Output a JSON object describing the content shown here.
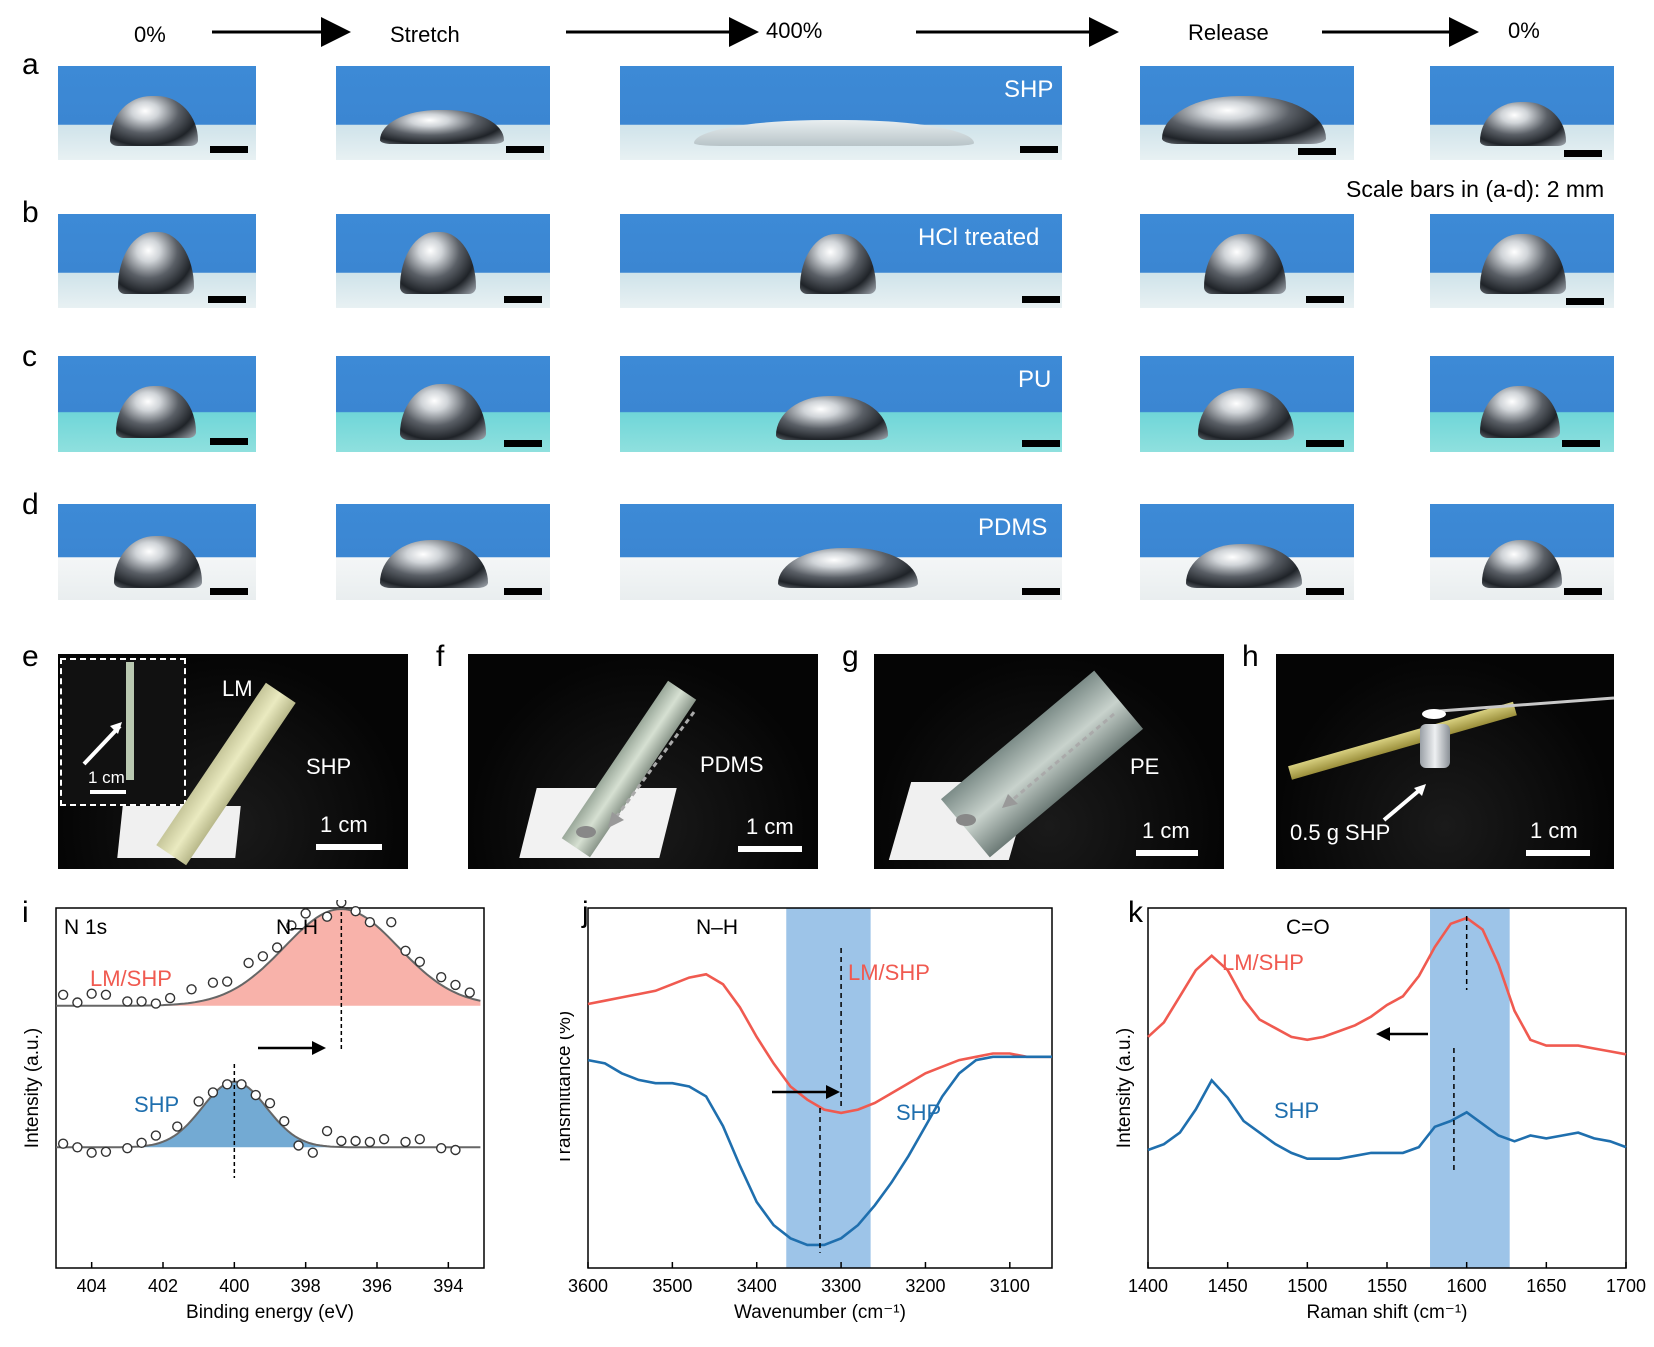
{
  "header": {
    "stage1": "0%",
    "stage2": "Stretch",
    "stage3": "400%",
    "stage4": "Release",
    "stage5": "0%"
  },
  "rows": {
    "a": {
      "label": "a",
      "material": "SHP"
    },
    "b": {
      "label": "b",
      "material": "HCl treated"
    },
    "c": {
      "label": "c",
      "material": "PU"
    },
    "d": {
      "label": "d",
      "material": "PDMS"
    }
  },
  "scale_note": "Scale bars in (a-d): 2 mm",
  "panels": {
    "e": {
      "label": "e",
      "lm": "LM",
      "shp": "SHP",
      "scale": "1 cm",
      "inset_scale": "1 cm"
    },
    "f": {
      "label": "f",
      "material": "PDMS",
      "scale": "1 cm"
    },
    "g": {
      "label": "g",
      "material": "PE",
      "scale": "1 cm"
    },
    "h": {
      "label": "h",
      "load": "0.5 g SHP",
      "scale": "1 cm"
    }
  },
  "chart_data": [
    {
      "panel": "i",
      "type": "scatter",
      "annotation_region": "N 1s",
      "annotation_peak": "N–H",
      "xlabel": "Binding energy (eV)",
      "ylabel": "Intensity (a.u.)",
      "xlim": [
        405,
        393
      ],
      "xticks": [
        404,
        402,
        400,
        398,
        396,
        394
      ],
      "series": [
        {
          "name": "LM/SHP",
          "color": "#f05a50",
          "peak_center": 397.0,
          "points": [
            [
              404.8,
              0.12
            ],
            [
              404.4,
              0.05
            ],
            [
              404.0,
              0.13
            ],
            [
              403.6,
              0.12
            ],
            [
              403.0,
              0.06
            ],
            [
              402.6,
              0.06
            ],
            [
              402.2,
              0.04
            ],
            [
              401.8,
              0.09
            ],
            [
              401.2,
              0.17
            ],
            [
              400.6,
              0.23
            ],
            [
              400.2,
              0.24
            ],
            [
              399.6,
              0.41
            ],
            [
              399.2,
              0.47
            ],
            [
              398.8,
              0.55
            ],
            [
              398.4,
              0.75
            ],
            [
              398.0,
              0.86
            ],
            [
              397.4,
              0.83
            ],
            [
              397.0,
              0.96
            ],
            [
              396.6,
              0.88
            ],
            [
              396.2,
              0.78
            ],
            [
              395.6,
              0.78
            ],
            [
              395.2,
              0.52
            ],
            [
              394.8,
              0.42
            ],
            [
              394.2,
              0.28
            ],
            [
              393.8,
              0.21
            ],
            [
              393.4,
              0.14
            ]
          ]
        },
        {
          "name": "SHP",
          "color": "#1f6fae",
          "peak_center": 400.0,
          "points": [
            [
              404.8,
              0.07
            ],
            [
              404.4,
              0.03
            ],
            [
              404.0,
              -0.03
            ],
            [
              403.6,
              -0.02
            ],
            [
              403.0,
              0.02
            ],
            [
              402.6,
              0.08
            ],
            [
              402.2,
              0.16
            ],
            [
              401.6,
              0.26
            ],
            [
              401.0,
              0.54
            ],
            [
              400.6,
              0.64
            ],
            [
              400.2,
              0.73
            ],
            [
              399.8,
              0.73
            ],
            [
              399.4,
              0.61
            ],
            [
              399.0,
              0.52
            ],
            [
              398.6,
              0.32
            ],
            [
              398.2,
              0.05
            ],
            [
              397.8,
              -0.03
            ],
            [
              397.4,
              0.21
            ],
            [
              397.0,
              0.1
            ],
            [
              396.6,
              0.1
            ],
            [
              396.2,
              0.09
            ],
            [
              395.8,
              0.12
            ],
            [
              395.2,
              0.09
            ],
            [
              394.8,
              0.12
            ],
            [
              394.2,
              0.02
            ],
            [
              393.8,
              0.0
            ]
          ]
        }
      ]
    },
    {
      "panel": "j",
      "type": "line",
      "annotation_peak": "N–H",
      "xlabel": "Wavenumber (cm⁻¹)",
      "ylabel": "Transmittance (%)",
      "xlim": [
        3600,
        3050
      ],
      "xticks": [
        3600,
        3500,
        3400,
        3300,
        3200,
        3100
      ],
      "band": [
        3365,
        3265
      ],
      "series": [
        {
          "name": "LM/SHP",
          "color": "#f05a50",
          "peak_center": 3300,
          "x": [
            3600,
            3580,
            3560,
            3540,
            3520,
            3500,
            3480,
            3460,
            3440,
            3420,
            3400,
            3380,
            3360,
            3340,
            3320,
            3300,
            3280,
            3260,
            3240,
            3220,
            3200,
            3180,
            3160,
            3140,
            3120,
            3100,
            3080,
            3060,
            3050
          ],
          "y": [
            0.8,
            0.81,
            0.82,
            0.83,
            0.84,
            0.86,
            0.88,
            0.89,
            0.86,
            0.79,
            0.7,
            0.62,
            0.55,
            0.51,
            0.48,
            0.47,
            0.48,
            0.5,
            0.53,
            0.56,
            0.59,
            0.61,
            0.63,
            0.64,
            0.65,
            0.65,
            0.64,
            0.64,
            0.64
          ]
        },
        {
          "name": "SHP",
          "color": "#1f6fae",
          "peak_center": 3325,
          "x": [
            3600,
            3580,
            3560,
            3540,
            3520,
            3500,
            3480,
            3460,
            3440,
            3420,
            3400,
            3380,
            3360,
            3340,
            3320,
            3300,
            3280,
            3260,
            3240,
            3220,
            3200,
            3180,
            3160,
            3140,
            3120,
            3100,
            3080,
            3060,
            3050
          ],
          "y": [
            0.63,
            0.62,
            0.59,
            0.57,
            0.56,
            0.56,
            0.55,
            0.52,
            0.43,
            0.31,
            0.2,
            0.13,
            0.09,
            0.07,
            0.07,
            0.09,
            0.13,
            0.19,
            0.26,
            0.34,
            0.43,
            0.52,
            0.59,
            0.63,
            0.64,
            0.64,
            0.64,
            0.64,
            0.64
          ]
        }
      ]
    },
    {
      "panel": "k",
      "type": "line",
      "annotation_peak": "C=O",
      "xlabel": "Raman shift (cm⁻¹)",
      "ylabel": "Intensity (a.u.)",
      "xlim": [
        1400,
        1700
      ],
      "xticks": [
        1400,
        1450,
        1500,
        1550,
        1600,
        1650,
        1700
      ],
      "band": [
        1577,
        1627
      ],
      "series": [
        {
          "name": "LM/SHP",
          "color": "#f05a50",
          "peak_center": 1600,
          "x": [
            1400,
            1410,
            1420,
            1430,
            1440,
            1450,
            1460,
            1470,
            1480,
            1490,
            1500,
            1510,
            1520,
            1530,
            1540,
            1550,
            1560,
            1570,
            1580,
            1590,
            1600,
            1610,
            1620,
            1630,
            1640,
            1650,
            1660,
            1670,
            1680,
            1690,
            1700
          ],
          "y": [
            0.59,
            0.64,
            0.73,
            0.82,
            0.87,
            0.82,
            0.72,
            0.65,
            0.62,
            0.59,
            0.58,
            0.59,
            0.61,
            0.63,
            0.66,
            0.7,
            0.73,
            0.8,
            0.9,
            0.98,
            1.0,
            0.96,
            0.84,
            0.68,
            0.58,
            0.56,
            0.56,
            0.56,
            0.55,
            0.54,
            0.53
          ]
        },
        {
          "name": "SHP",
          "color": "#1f6fae",
          "peak_center": 1592,
          "x": [
            1400,
            1410,
            1420,
            1430,
            1440,
            1450,
            1460,
            1470,
            1480,
            1490,
            1500,
            1510,
            1520,
            1530,
            1540,
            1550,
            1560,
            1570,
            1580,
            1590,
            1600,
            1610,
            1620,
            1630,
            1640,
            1650,
            1660,
            1670,
            1680,
            1690,
            1700
          ],
          "y": [
            0.2,
            0.22,
            0.26,
            0.34,
            0.44,
            0.38,
            0.3,
            0.26,
            0.22,
            0.19,
            0.17,
            0.17,
            0.17,
            0.18,
            0.19,
            0.19,
            0.19,
            0.21,
            0.28,
            0.3,
            0.33,
            0.29,
            0.25,
            0.23,
            0.25,
            0.24,
            0.25,
            0.26,
            0.24,
            0.23,
            0.21
          ]
        }
      ]
    }
  ]
}
